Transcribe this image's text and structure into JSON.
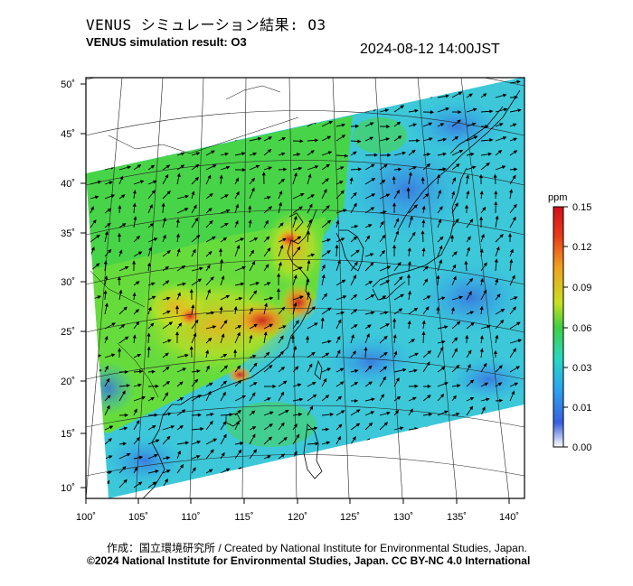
{
  "header": {
    "title_jp": "VENUS シミュレーション結果: O3",
    "title_en": "VENUS simulation result: O3",
    "timestamp": "2024-08-12 14:00JST"
  },
  "map": {
    "lon_ticks": [
      "100˚",
      "105˚",
      "110˚",
      "115˚",
      "120˚",
      "125˚",
      "130˚",
      "135˚",
      "140˚"
    ],
    "lat_ticks": [
      "50˚",
      "45˚",
      "40˚",
      "35˚",
      "30˚",
      "25˚",
      "20˚",
      "15˚",
      "10˚"
    ]
  },
  "colorbar": {
    "unit": "ppm",
    "ticks": [
      "0.15",
      "0.12",
      "0.09",
      "0.06",
      "0.03",
      "0.01",
      "0.00"
    ],
    "colors": [
      "#ffffff",
      "#3a5fe0",
      "#2aa8f0",
      "#28d8c0",
      "#40e040",
      "#c8e020",
      "#f0b020",
      "#e83a1a",
      "#d0101a"
    ]
  },
  "footer": {
    "credit_jp": "作成：国立環境研究所 / Created by National Institute for Environmental Studies, Japan.",
    "copyright": "©2024 National Institute for Environmental Studies, Japan. CC BY-NC 4.0 International"
  }
}
